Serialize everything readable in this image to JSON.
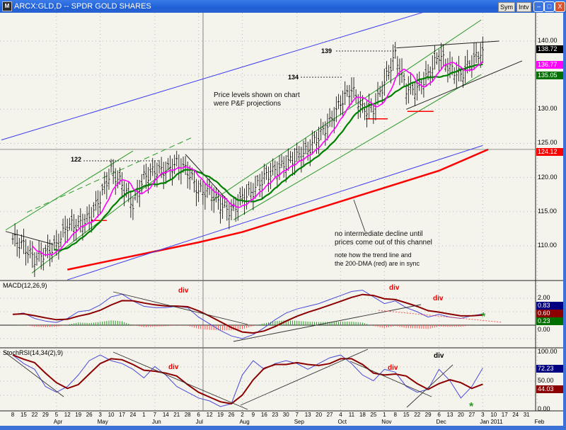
{
  "window": {
    "title": "ARCX:GLD,D -- SPDR GOLD SHARES",
    "app_icon": "chart-app-icon",
    "buttons": {
      "sym": "Sym",
      "intv": "Intv"
    },
    "controls": {
      "minimize": "–",
      "maximize": "□",
      "close": "X"
    }
  },
  "annotations": {
    "level_122": "122",
    "level_134": "134",
    "level_139": "139",
    "note_pf_1": "Price levels shown on chart",
    "note_pf_2": "were P&F projections",
    "note_channel_1": "no intermediate decline until",
    "note_channel_2": "prices come out of this channel",
    "note_sync_1": "note how the trend line and",
    "note_sync_2": "the 200-DMA (red) are in sync",
    "div_labels": [
      "div",
      "div",
      "div",
      "div",
      "div",
      "div"
    ],
    "star": "*"
  },
  "colors": {
    "pink_ma": "#ff00ff",
    "green_ma": "#008000",
    "dma200": "#ff0000",
    "channel": "#3c3cf0",
    "macd": "#4a4ad8",
    "signal": "#8b0000",
    "hist_pos": "#2a9a2a",
    "hist_neg": "#ff5050"
  },
  "chart_data": [
    {
      "type": "line",
      "title": "ARCX:GLD,D -- SPDR GOLD SHARES",
      "panel": "price",
      "ylim": [
        106,
        144
      ],
      "yticks": [
        "140.00",
        "130.00",
        "125.00",
        "120.00",
        "115.00",
        "110.00"
      ],
      "ytick_values": [
        140,
        130,
        125,
        120,
        115,
        110
      ],
      "last_values": {
        "close": "138.72",
        "ma_short": "136.77",
        "ma_long": "135.05",
        "dma200": "124.12"
      },
      "weekly_close": [
        111,
        110,
        108,
        109,
        110,
        113,
        113,
        114,
        117,
        121,
        119,
        116,
        120,
        121,
        121,
        122,
        121,
        118,
        118,
        116,
        115,
        117,
        118,
        120,
        121,
        122,
        123,
        124,
        126,
        128,
        131,
        133,
        130,
        130,
        134,
        138,
        133,
        133,
        135,
        138,
        136,
        135,
        137,
        138.72
      ],
      "dma200": [
        [
          5,
          106.5
        ],
        [
          17,
          110.5
        ],
        [
          21,
          112
        ],
        [
          30,
          116.5
        ],
        [
          39,
          121
        ],
        [
          43.5,
          124.12
        ]
      ],
      "horizontal_level": 124.12,
      "trendlines": [
        {
          "color": "#3c3cf0",
          "from": [
            -1.04,
            125.5
          ],
          "to": [
            37.5,
            144.2
          ]
        },
        {
          "color": "#3c3cf0",
          "from": [
            5,
            105
          ],
          "to": [
            43,
            124.7
          ]
        },
        {
          "color": "#2a9a2a",
          "from": [
            -0.65,
            112.3
          ],
          "to": [
            11,
            123.9
          ]
        },
        {
          "color": "#2a9a2a",
          "from": [
            1.75,
            106
          ],
          "to": [
            14.4,
            121.4
          ]
        },
        {
          "color": "#2a9a2a",
          "from": [
            1.3,
            114.9
          ],
          "to": [
            16.3,
            125.8
          ],
          "dashed": true
        },
        {
          "color": "#2a9a2a",
          "from": [
            18.25,
            116.6
          ],
          "to": [
            42.85,
            143.1
          ]
        },
        {
          "color": "#2a9a2a",
          "from": [
            20.2,
            113.8
          ],
          "to": [
            42.85,
            135.1
          ]
        },
        {
          "color": "#222222",
          "from": [
            35.1,
            139
          ],
          "to": [
            44.5,
            140
          ]
        },
        {
          "color": "#222222",
          "from": [
            36,
            130
          ],
          "to": [
            46.6,
            137.1
          ]
        },
        {
          "color": "#222222",
          "from": [
            15.8,
            123.4
          ],
          "to": [
            20.2,
            115.7
          ]
        },
        {
          "color": "#222222",
          "from": [
            -0.65,
            112.1
          ],
          "to": [
            3.7,
            110.2
          ]
        },
        {
          "color": "#ff0000",
          "from": [
            32.3,
            128.6
          ],
          "to": [
            34.3,
            128.6
          ]
        },
        {
          "color": "#ff0000",
          "from": [
            36.1,
            129.7
          ],
          "to": [
            38.5,
            129.7
          ]
        },
        {
          "color": "#ff0000",
          "from": [
            7.2,
            113.7
          ],
          "to": [
            8.6,
            113.7
          ]
        }
      ]
    },
    {
      "type": "line",
      "panel": "macd",
      "title": "MACD(12,26,9)",
      "ylim": [
        -1.6,
        3.3
      ],
      "yticks": [
        "2.00",
        "0.00"
      ],
      "ytick_values": [
        2,
        0
      ],
      "last_values": {
        "macd": "0.83",
        "signal": "0.60",
        "hist": "0.23"
      },
      "macd": [
        0.8,
        0.9,
        0.5,
        0.3,
        0.2,
        0.5,
        1.0,
        1.1,
        1.5,
        2.1,
        2.3,
        1.8,
        1.4,
        1.3,
        1.3,
        1.4,
        1.3,
        0.6,
        0.1,
        -0.4,
        -0.8,
        -1.0,
        -0.7,
        -0.2,
        0.4,
        0.9,
        1.2,
        1.4,
        1.6,
        1.9,
        2.2,
        2.5,
        2.6,
        2.1,
        1.6,
        1.8,
        1.3,
        1.0,
        0.6,
        0.8,
        0.6,
        0.5,
        0.7,
        0.83
      ]
    },
    {
      "type": "line",
      "panel": "stochrsi",
      "title": "StochRSI(14,34(2),9)",
      "ylim": [
        -3,
        104
      ],
      "yticks": [
        "100.00",
        "50.00",
        "0.00"
      ],
      "ytick_values": [
        100,
        50,
        0
      ],
      "last_values": {
        "k": "72.23",
        "d": "44.03"
      },
      "k": [
        95,
        80,
        70,
        40,
        30,
        40,
        60,
        85,
        95,
        85,
        80,
        70,
        55,
        75,
        60,
        40,
        30,
        20,
        15,
        5,
        10,
        60,
        85,
        70,
        80,
        85,
        80,
        70,
        80,
        90,
        95,
        80,
        60,
        50,
        70,
        65,
        40,
        30,
        35,
        70,
        50,
        20,
        40,
        72.23
      ]
    }
  ],
  "xaxis": {
    "day_labels": [
      "8",
      "15",
      "22",
      "29",
      "5",
      "12",
      "19",
      "26",
      "3",
      "10",
      "17",
      "24",
      "1",
      "7",
      "14",
      "21",
      "28",
      "6",
      "12",
      "19",
      "26",
      "2",
      "9",
      "16",
      "23",
      "30",
      "7",
      "13",
      "20",
      "27",
      "4",
      "11",
      "18",
      "25",
      "1",
      "8",
      "15",
      "22",
      "29",
      "6",
      "13",
      "20",
      "27",
      "3",
      "10",
      "17",
      "24",
      "31"
    ],
    "months": [
      {
        "label": "Apr",
        "index": 4
      },
      {
        "label": "May",
        "index": 8
      },
      {
        "label": "Jun",
        "index": 13
      },
      {
        "label": "Jul",
        "index": 17
      },
      {
        "label": "Aug",
        "index": 21
      },
      {
        "label": "Sep",
        "index": 26
      },
      {
        "label": "Oct",
        "index": 30
      },
      {
        "label": "Nov",
        "index": 34
      },
      {
        "label": "Dec",
        "index": 39
      },
      {
        "label": "Jan 2011",
        "index": 43
      },
      {
        "label": "Feb",
        "index": 48
      }
    ]
  }
}
